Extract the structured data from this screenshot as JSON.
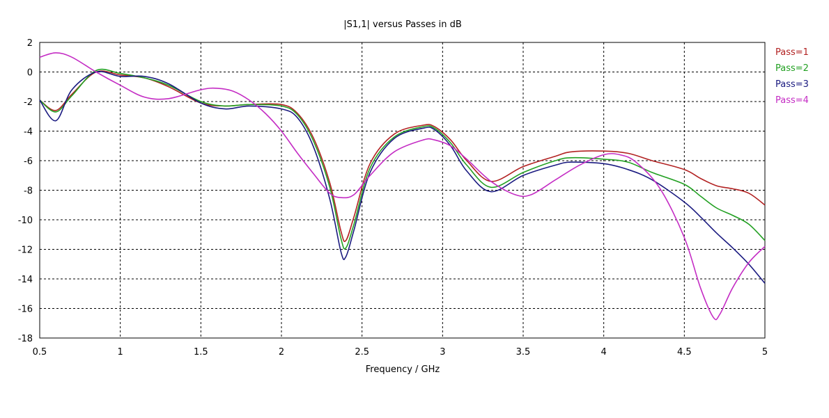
{
  "chart_data": {
    "type": "line",
    "title": "|S1,1| versus Passes in dB",
    "xlabel": "Frequency / GHz",
    "ylabel": "",
    "xlim": [
      0.5,
      5
    ],
    "ylim": [
      -18,
      2
    ],
    "xticks": [
      0.5,
      1,
      1.5,
      2,
      2.5,
      3,
      3.5,
      4,
      4.5,
      5
    ],
    "xtick_labels": [
      "0.5",
      "1",
      "1.5",
      "2",
      "2.5",
      "3",
      "3.5",
      "4",
      "4.5",
      "5"
    ],
    "yticks": [
      2,
      0,
      -2,
      -4,
      -6,
      -8,
      -10,
      -12,
      -14,
      -16,
      -18
    ],
    "ytick_labels": [
      "2",
      "0",
      "-2",
      "-4",
      "-6",
      "-8",
      "-10",
      "-12",
      "-14",
      "-16",
      "-18"
    ],
    "grid": true,
    "legend_position": "right-top",
    "series": [
      {
        "name": "Pass=1",
        "color": "#b22222",
        "x": [
          0.5,
          0.6,
          0.7,
          0.85,
          1.0,
          1.15,
          1.3,
          1.5,
          1.65,
          1.8,
          2.0,
          2.1,
          2.2,
          2.3,
          2.37,
          2.4,
          2.45,
          2.55,
          2.7,
          2.88,
          2.95,
          3.05,
          3.15,
          3.3,
          3.5,
          3.7,
          3.8,
          4.0,
          4.15,
          4.3,
          4.5,
          4.6,
          4.7,
          4.8,
          4.9,
          5.0
        ],
        "y": [
          -1.9,
          -2.6,
          -1.5,
          0.0,
          -0.2,
          -0.4,
          -1.0,
          -2.1,
          -2.3,
          -2.2,
          -2.2,
          -2.8,
          -4.5,
          -7.5,
          -10.8,
          -11.4,
          -9.8,
          -6.2,
          -4.2,
          -3.6,
          -3.7,
          -4.6,
          -6.0,
          -7.4,
          -6.4,
          -5.7,
          -5.4,
          -5.35,
          -5.5,
          -6.0,
          -6.6,
          -7.2,
          -7.7,
          -7.9,
          -8.2,
          -9.0
        ]
      },
      {
        "name": "Pass=2",
        "color": "#22a022",
        "x": [
          0.5,
          0.6,
          0.7,
          0.85,
          1.0,
          1.15,
          1.3,
          1.5,
          1.65,
          1.8,
          2.0,
          2.1,
          2.2,
          2.3,
          2.37,
          2.4,
          2.45,
          2.55,
          2.7,
          2.88,
          2.95,
          3.05,
          3.15,
          3.3,
          3.5,
          3.7,
          3.8,
          4.0,
          4.15,
          4.3,
          4.5,
          4.6,
          4.7,
          4.8,
          4.9,
          5.0
        ],
        "y": [
          -1.9,
          -2.7,
          -1.6,
          0.1,
          -0.1,
          -0.4,
          -0.9,
          -2.0,
          -2.3,
          -2.2,
          -2.3,
          -2.9,
          -4.7,
          -7.8,
          -11.3,
          -11.9,
          -10.3,
          -6.5,
          -4.4,
          -3.7,
          -3.8,
          -4.8,
          -6.3,
          -7.8,
          -6.8,
          -6.0,
          -5.8,
          -5.9,
          -6.1,
          -6.8,
          -7.6,
          -8.4,
          -9.2,
          -9.7,
          -10.3,
          -11.4
        ]
      },
      {
        "name": "Pass=3",
        "color": "#1a1a80",
        "x": [
          0.5,
          0.6,
          0.7,
          0.85,
          1.0,
          1.15,
          1.3,
          1.5,
          1.65,
          1.8,
          2.0,
          2.1,
          2.2,
          2.3,
          2.37,
          2.4,
          2.45,
          2.55,
          2.7,
          2.88,
          2.95,
          3.05,
          3.15,
          3.3,
          3.5,
          3.7,
          3.8,
          4.0,
          4.15,
          4.3,
          4.5,
          4.6,
          4.7,
          4.8,
          4.9,
          5.0
        ],
        "y": [
          -1.9,
          -3.3,
          -1.2,
          0.0,
          -0.3,
          -0.3,
          -0.8,
          -2.1,
          -2.5,
          -2.3,
          -2.5,
          -3.1,
          -5.1,
          -8.6,
          -12.2,
          -12.5,
          -10.7,
          -6.8,
          -4.5,
          -3.8,
          -3.9,
          -5.0,
          -6.7,
          -8.1,
          -7.0,
          -6.3,
          -6.1,
          -6.2,
          -6.6,
          -7.3,
          -8.8,
          -9.8,
          -10.9,
          -11.9,
          -13.0,
          -14.3
        ]
      },
      {
        "name": "Pass=4",
        "color": "#c42cc4",
        "x": [
          0.5,
          0.6,
          0.7,
          0.85,
          1.0,
          1.15,
          1.3,
          1.5,
          1.6,
          1.7,
          1.8,
          1.9,
          2.0,
          2.1,
          2.2,
          2.3,
          2.37,
          2.45,
          2.55,
          2.7,
          2.88,
          2.95,
          3.05,
          3.15,
          3.3,
          3.45,
          3.55,
          3.7,
          3.85,
          4.0,
          4.1,
          4.2,
          4.35,
          4.5,
          4.6,
          4.68,
          4.72,
          4.8,
          4.9,
          5.0
        ],
        "y": [
          1.0,
          1.3,
          1.0,
          0.0,
          -0.9,
          -1.7,
          -1.8,
          -1.2,
          -1.1,
          -1.3,
          -1.9,
          -2.8,
          -4.0,
          -5.5,
          -6.9,
          -8.2,
          -8.5,
          -8.3,
          -7.0,
          -5.4,
          -4.6,
          -4.6,
          -5.0,
          -5.9,
          -7.4,
          -8.3,
          -8.3,
          -7.3,
          -6.3,
          -5.6,
          -5.6,
          -6.1,
          -7.9,
          -11.2,
          -14.6,
          -16.6,
          -16.4,
          -14.6,
          -12.9,
          -11.8
        ]
      }
    ]
  }
}
